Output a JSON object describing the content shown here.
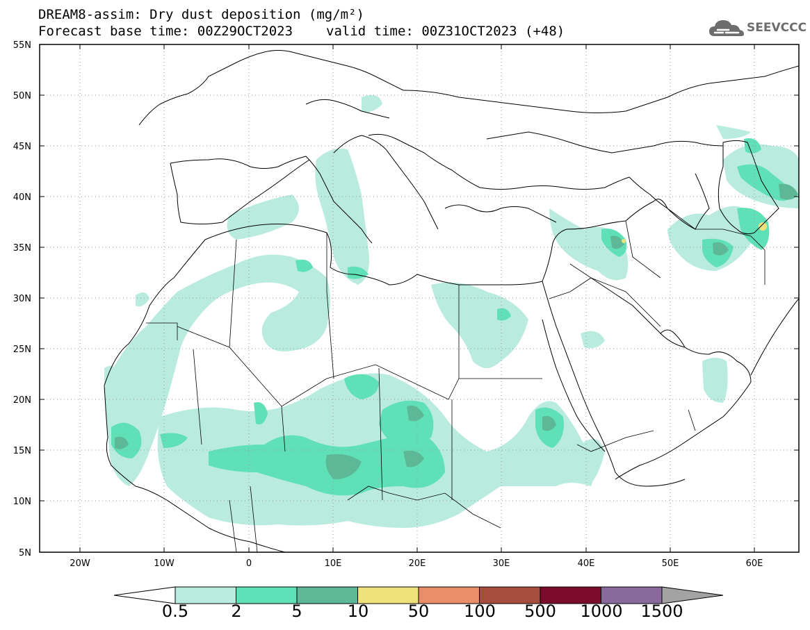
{
  "header": {
    "title": "DREAM8-assim: Dry dust deposition (mg/m²)",
    "base_time": "Forecast base time: 00Z29OCT2023",
    "valid_time": "valid time: 00Z31OCT2023 (+48)"
  },
  "logo": {
    "text": "SEEVCCC",
    "icon": "cloud-logo-icon"
  },
  "map": {
    "lat_ticks": [
      "55N",
      "50N",
      "45N",
      "40N",
      "35N",
      "30N",
      "25N",
      "20N",
      "15N",
      "10N",
      "5N"
    ],
    "lon_ticks": [
      "20W",
      "10W",
      "0",
      "10E",
      "20E",
      "30E",
      "40E",
      "50E",
      "60E"
    ],
    "lon_range": [
      -25,
      65
    ],
    "lat_range": [
      5,
      55
    ],
    "gridlines": true
  },
  "colorbar": {
    "labels": [
      "0.5",
      "2",
      "5",
      "10",
      "50",
      "100",
      "500",
      "1000",
      "1500"
    ],
    "colors": [
      "#b9ecdf",
      "#5fe0b6",
      "#5cb896",
      "#f0e27a",
      "#e98e68",
      "#a74d40",
      "#7a0b2a",
      "#8a6a9c",
      "#a3a3a3"
    ],
    "units": "mg/m²"
  }
}
